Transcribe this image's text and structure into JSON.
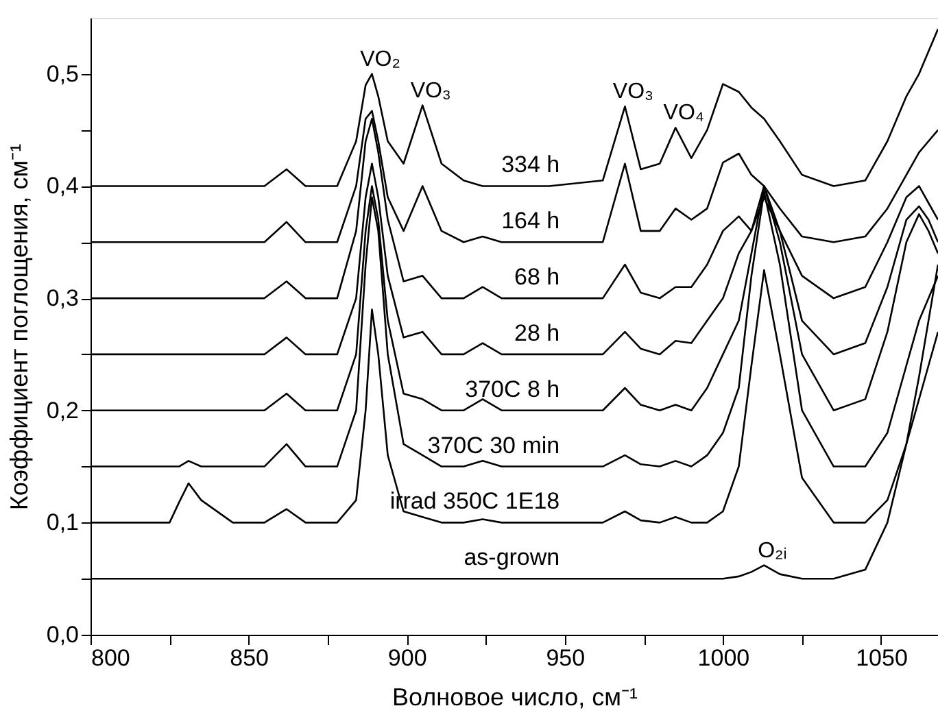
{
  "chart_data": {
    "type": "line",
    "xlabel": "Волновое число, см⁻¹",
    "ylabel": "Коэффициент поглощения, см⁻¹",
    "xlim": [
      800,
      1068
    ],
    "ylim": [
      0,
      0.55
    ],
    "xticks": [
      {
        "value": 800,
        "label": "800"
      },
      {
        "value": 825,
        "label": null
      },
      {
        "value": 850,
        "label": "850"
      },
      {
        "value": 875,
        "label": null
      },
      {
        "value": 900,
        "label": "900"
      },
      {
        "value": 925,
        "label": null
      },
      {
        "value": 950,
        "label": "950"
      },
      {
        "value": 975,
        "label": null
      },
      {
        "value": 1000,
        "label": "1000"
      },
      {
        "value": 1025,
        "label": null
      },
      {
        "value": 1050,
        "label": "1050"
      }
    ],
    "yticks": [
      {
        "value": 0,
        "label": "0,0"
      },
      {
        "value": 0.05,
        "label": null
      },
      {
        "value": 0.1,
        "label": "0,1"
      },
      {
        "value": 0.15,
        "label": null
      },
      {
        "value": 0.2,
        "label": "0,2"
      },
      {
        "value": 0.25,
        "label": null
      },
      {
        "value": 0.3,
        "label": "0,3"
      },
      {
        "value": 0.35,
        "label": null
      },
      {
        "value": 0.4,
        "label": "0,4"
      },
      {
        "value": 0.45,
        "label": null
      },
      {
        "value": 0.5,
        "label": "0,5"
      }
    ],
    "grid": false,
    "legend": false,
    "marker": "none",
    "line_style": "solid",
    "x": [
      800,
      825,
      828,
      831,
      835,
      845,
      855,
      862,
      868,
      878,
      884,
      887,
      889,
      891,
      894,
      899,
      905,
      911,
      918,
      924,
      930,
      945,
      962,
      969,
      974,
      980,
      985,
      990,
      995,
      1000,
      1005,
      1009,
      1013,
      1018,
      1025,
      1035,
      1045,
      1052,
      1058,
      1062,
      1065,
      1068
    ],
    "series": [
      {
        "name": "as-grown",
        "color": "#000000",
        "values": [
          0.05,
          0.05,
          0.05,
          0.05,
          0.05,
          0.05,
          0.05,
          0.05,
          0.05,
          0.05,
          0.05,
          0.05,
          0.05,
          0.05,
          0.05,
          0.05,
          0.05,
          0.05,
          0.05,
          0.05,
          0.05,
          0.05,
          0.05,
          0.05,
          0.05,
          0.05,
          0.05,
          0.05,
          0.05,
          0.05,
          0.052,
          0.056,
          0.062,
          0.054,
          0.05,
          0.05,
          0.058,
          0.1,
          0.17,
          0.23,
          0.28,
          0.33
        ]
      },
      {
        "name": "irrad 350C 1E18",
        "color": "#000000",
        "values": [
          0.1,
          0.1,
          0.118,
          0.135,
          0.12,
          0.1,
          0.1,
          0.112,
          0.1,
          0.1,
          0.12,
          0.2,
          0.29,
          0.25,
          0.16,
          0.11,
          0.105,
          0.1,
          0.1,
          0.103,
          0.1,
          0.1,
          0.1,
          0.11,
          0.102,
          0.1,
          0.105,
          0.1,
          0.1,
          0.11,
          0.15,
          0.24,
          0.325,
          0.25,
          0.14,
          0.1,
          0.1,
          0.12,
          0.17,
          0.21,
          0.24,
          0.27
        ]
      },
      {
        "name": "370C 30 min",
        "color": "#000000",
        "values": [
          0.15,
          0.15,
          0.15,
          0.155,
          0.15,
          0.15,
          0.15,
          0.17,
          0.15,
          0.15,
          0.2,
          0.33,
          0.39,
          0.36,
          0.25,
          0.17,
          0.16,
          0.15,
          0.15,
          0.155,
          0.15,
          0.15,
          0.15,
          0.16,
          0.152,
          0.15,
          0.155,
          0.15,
          0.16,
          0.18,
          0.22,
          0.32,
          0.395,
          0.33,
          0.2,
          0.15,
          0.15,
          0.18,
          0.24,
          0.28,
          0.3,
          0.32
        ]
      },
      {
        "name": "370C 8 h",
        "color": "#000000",
        "values": [
          0.2,
          0.2,
          0.2,
          0.2,
          0.2,
          0.2,
          0.2,
          0.215,
          0.2,
          0.2,
          0.25,
          0.36,
          0.4,
          0.37,
          0.28,
          0.215,
          0.21,
          0.2,
          0.2,
          0.21,
          0.2,
          0.2,
          0.2,
          0.22,
          0.205,
          0.2,
          0.205,
          0.2,
          0.22,
          0.25,
          0.28,
          0.34,
          0.4,
          0.35,
          0.25,
          0.2,
          0.21,
          0.27,
          0.35,
          0.375,
          0.36,
          0.34
        ]
      },
      {
        "name": "28 h",
        "color": "#000000",
        "values": [
          0.25,
          0.25,
          0.25,
          0.25,
          0.25,
          0.25,
          0.25,
          0.265,
          0.25,
          0.25,
          0.3,
          0.39,
          0.42,
          0.39,
          0.32,
          0.265,
          0.27,
          0.25,
          0.25,
          0.26,
          0.25,
          0.25,
          0.25,
          0.27,
          0.255,
          0.25,
          0.262,
          0.26,
          0.28,
          0.3,
          0.34,
          0.36,
          0.4,
          0.36,
          0.28,
          0.25,
          0.26,
          0.31,
          0.37,
          0.382,
          0.37,
          0.35
        ]
      },
      {
        "name": "68 h",
        "color": "#000000",
        "values": [
          0.3,
          0.3,
          0.3,
          0.3,
          0.3,
          0.3,
          0.3,
          0.315,
          0.3,
          0.3,
          0.36,
          0.44,
          0.46,
          0.43,
          0.37,
          0.315,
          0.32,
          0.3,
          0.3,
          0.31,
          0.3,
          0.3,
          0.3,
          0.33,
          0.305,
          0.3,
          0.31,
          0.31,
          0.33,
          0.36,
          0.373,
          0.36,
          0.39,
          0.36,
          0.32,
          0.3,
          0.31,
          0.35,
          0.39,
          0.4,
          0.385,
          0.37
        ]
      },
      {
        "name": "164 h",
        "color": "#000000",
        "values": [
          0.35,
          0.35,
          0.35,
          0.35,
          0.35,
          0.35,
          0.35,
          0.368,
          0.35,
          0.35,
          0.4,
          0.46,
          0.467,
          0.44,
          0.39,
          0.36,
          0.4,
          0.36,
          0.35,
          0.355,
          0.35,
          0.35,
          0.35,
          0.42,
          0.36,
          0.36,
          0.38,
          0.37,
          0.38,
          0.421,
          0.429,
          0.41,
          0.4,
          0.38,
          0.355,
          0.35,
          0.355,
          0.38,
          0.41,
          0.43,
          0.44,
          0.45
        ]
      },
      {
        "name": "334 h",
        "color": "#000000",
        "values": [
          0.4,
          0.4,
          0.4,
          0.4,
          0.4,
          0.4,
          0.4,
          0.415,
          0.4,
          0.4,
          0.44,
          0.49,
          0.5,
          0.48,
          0.44,
          0.42,
          0.472,
          0.42,
          0.405,
          0.4,
          0.4,
          0.4,
          0.405,
          0.471,
          0.415,
          0.42,
          0.452,
          0.425,
          0.45,
          0.491,
          0.484,
          0.47,
          0.46,
          0.44,
          0.41,
          0.4,
          0.405,
          0.44,
          0.48,
          0.5,
          0.52,
          0.54
        ]
      }
    ],
    "annotations": [
      {
        "text": "VO₂",
        "x": 889,
        "y": 0.5
      },
      {
        "text": "VO₃",
        "x": 905,
        "y": 0.472
      },
      {
        "text": "VO₃",
        "x": 969,
        "y": 0.471
      },
      {
        "text": "VO₄",
        "x": 985,
        "y": 0.452
      },
      {
        "text": "O₂ᵢ",
        "x": 1013,
        "y": 0.062
      }
    ]
  }
}
